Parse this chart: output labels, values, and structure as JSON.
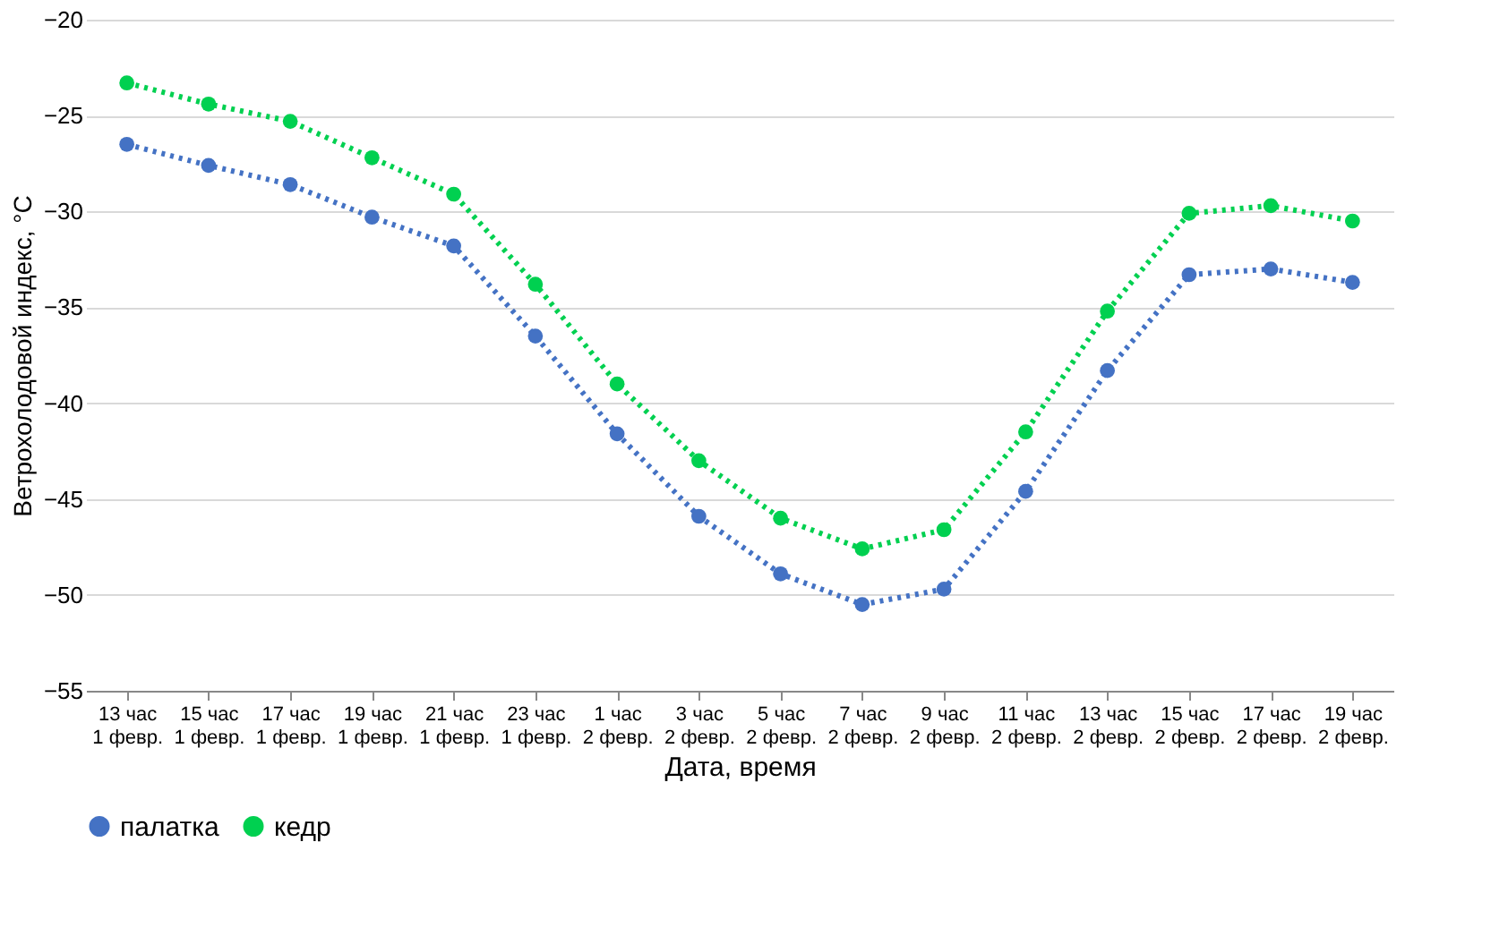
{
  "chart_data": {
    "type": "line",
    "xlabel": "Дата, время",
    "ylabel": "Ветрохолодовой индекс, °C",
    "categories": [
      "13 час\n1 февр.",
      "15 час\n1 февр.",
      "17 час\n1 февр.",
      "19 час\n1 февр.",
      "21 час\n1 февр.",
      "23 час\n1 февр.",
      "1 час\n2 февр.",
      "3 час\n2 февр.",
      "5 час\n2 февр.",
      "7 час\n2 февр.",
      "9 час\n2 февр.",
      "11 час\n2 февр.",
      "13 час\n2 февр.",
      "15 час\n2 февр.",
      "17 час\n2 февр.",
      "19 час\n2 февр."
    ],
    "series": [
      {
        "name": "палатка",
        "color": "#4472c4",
        "values": [
          -26.5,
          -27.6,
          -28.6,
          -30.3,
          -31.8,
          -36.5,
          -41.6,
          -45.9,
          -48.9,
          -50.5,
          -49.7,
          -44.6,
          -38.3,
          -33.3,
          -33.0,
          -33.7
        ]
      },
      {
        "name": "кедр",
        "color": "#00d050",
        "values": [
          -23.3,
          -24.4,
          -25.3,
          -27.2,
          -29.1,
          -33.8,
          -39.0,
          -43.0,
          -46.0,
          -47.6,
          -46.6,
          -41.5,
          -35.2,
          -30.1,
          -29.7,
          -30.5
        ]
      }
    ],
    "ylim": [
      -55,
      -20
    ],
    "yticks": [
      -55,
      -50,
      -45,
      -40,
      -35,
      -30,
      -25,
      -20
    ],
    "grid": "y",
    "legend": "bottom",
    "marker": "circle",
    "line_style": "dotted"
  }
}
